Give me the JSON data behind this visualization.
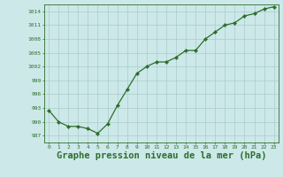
{
  "x": [
    0,
    1,
    2,
    3,
    4,
    5,
    6,
    7,
    8,
    9,
    10,
    11,
    12,
    13,
    14,
    15,
    16,
    17,
    18,
    19,
    20,
    21,
    22,
    23
  ],
  "y": [
    992.5,
    990.0,
    989.0,
    989.0,
    988.5,
    987.5,
    989.5,
    993.5,
    997.0,
    1000.5,
    1002.0,
    1003.0,
    1003.0,
    1004.0,
    1005.5,
    1005.5,
    1008.0,
    1009.5,
    1011.0,
    1011.5,
    1013.0,
    1013.5,
    1014.5,
    1015.0
  ],
  "line_color": "#2d6e2d",
  "marker": "D",
  "marker_size": 2.2,
  "bg_color": "#cce8e8",
  "grid_color": "#aacccc",
  "xlabel": "Graphe pression niveau de la mer (hPa)",
  "xlabel_fontsize": 7.5,
  "yticks": [
    987,
    990,
    993,
    996,
    999,
    1002,
    1005,
    1008,
    1011,
    1014
  ],
  "ylim": [
    985.5,
    1015.5
  ],
  "xlim": [
    -0.5,
    23.5
  ],
  "xtick_labels": [
    "0",
    "1",
    "2",
    "3",
    "4",
    "5",
    "6",
    "7",
    "8",
    "9",
    "10",
    "11",
    "12",
    "13",
    "14",
    "15",
    "16",
    "17",
    "18",
    "19",
    "20",
    "21",
    "22",
    "23"
  ]
}
